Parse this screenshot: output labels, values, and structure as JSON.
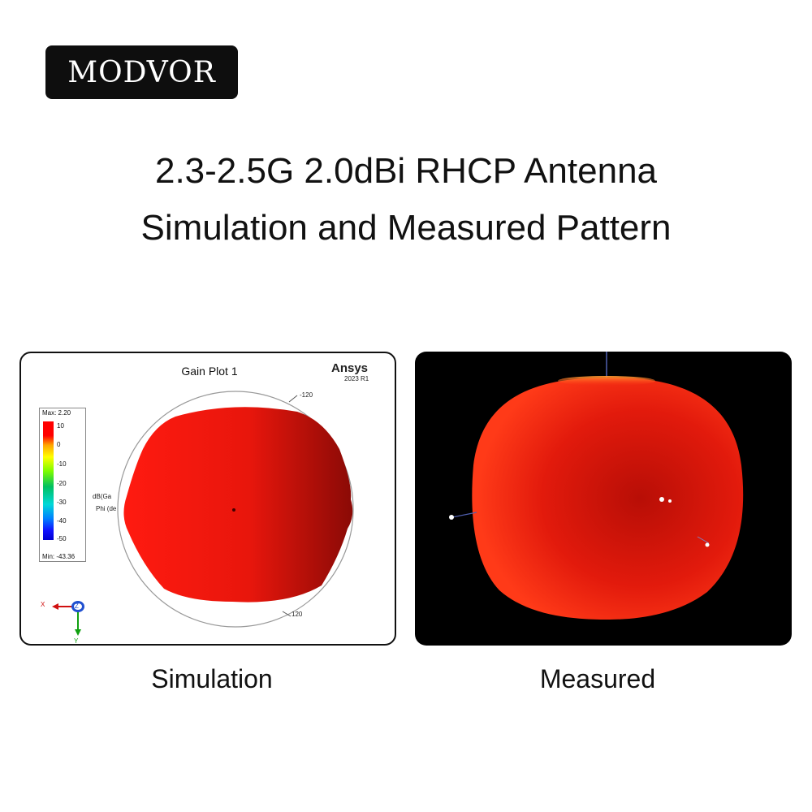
{
  "logo": {
    "text": "MODVOR"
  },
  "title": {
    "line1": "2.3-2.5G 2.0dBi RHCP Antenna",
    "line2": "Simulation and Measured Pattern"
  },
  "simulation": {
    "plot_title": "Gain Plot 1",
    "brand": "Ansys",
    "version": "2023 R1",
    "legend": {
      "max": "Max: 2.20",
      "min": "Min: -43.36",
      "ticks": [
        "10",
        "0",
        "-10",
        "-20",
        "-30",
        "-40",
        "-50"
      ]
    },
    "side_labels": [
      "dB(Ga",
      "Phi (de"
    ],
    "ring_labels": [
      "-120",
      "120"
    ],
    "axes": {
      "x": "X",
      "y": "Y",
      "z": "Z"
    },
    "caption": "Simulation"
  },
  "measured": {
    "caption": "Measured"
  },
  "colors": {
    "pattern_red": "#e8160c",
    "panel_dark": "#000000",
    "logo_bg": "#0e0e0e"
  }
}
